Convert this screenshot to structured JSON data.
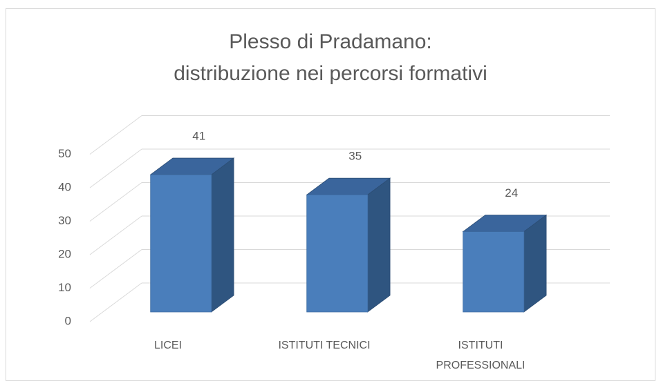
{
  "chart_data": {
    "type": "bar3d",
    "title": "Plesso di Pradamano:\ndistribuzione nei percorsi formativi",
    "categories": [
      "LICEI",
      "ISTITUTI TECNICI",
      "ISTITUTI PROFESSIONALI"
    ],
    "values": [
      41,
      35,
      24
    ],
    "color": "#4a7ebb",
    "ylim": [
      0,
      50
    ],
    "yticks": [
      0,
      10,
      20,
      30,
      40,
      50
    ],
    "grid": true
  }
}
